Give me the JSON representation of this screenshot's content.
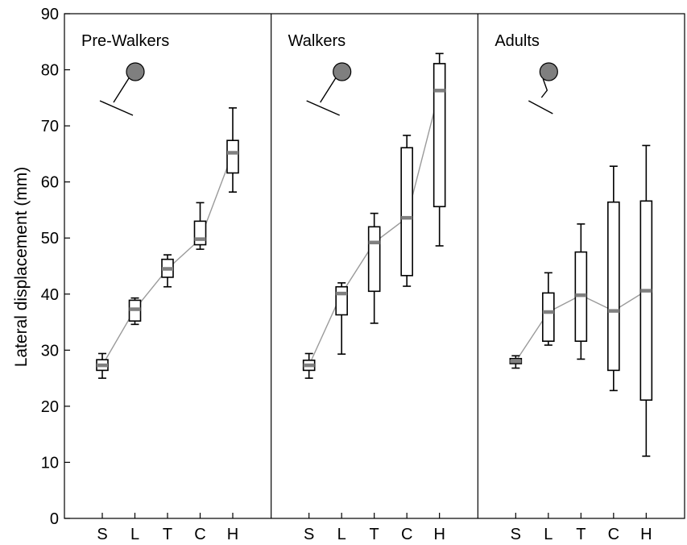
{
  "chart_data": {
    "type": "box",
    "ylabel": "Lateral displacement (mm)",
    "ylim": [
      0,
      90
    ],
    "yticks": [
      0,
      10,
      20,
      30,
      40,
      50,
      60,
      70,
      80,
      90
    ],
    "categories": [
      "S",
      "L",
      "T",
      "C",
      "H"
    ],
    "grid": false,
    "colors": {
      "median": "#808080",
      "connector": "#9a9a9a",
      "box": "#000000",
      "icon_fill": "#7f7f7f"
    },
    "panels": [
      {
        "title": "Pre-Walkers",
        "icon": "infant-pose-icon",
        "boxes": [
          {
            "category": "S",
            "min": 25.0,
            "q1": 26.4,
            "median": 27.3,
            "q3": 28.3,
            "max": 29.4
          },
          {
            "category": "L",
            "min": 34.6,
            "q1": 35.2,
            "median": 37.3,
            "q3": 38.9,
            "max": 39.3
          },
          {
            "category": "T",
            "min": 41.3,
            "q1": 43.0,
            "median": 44.5,
            "q3": 46.2,
            "max": 47.0
          },
          {
            "category": "C",
            "min": 48.0,
            "q1": 48.8,
            "median": 49.8,
            "q3": 53.0,
            "max": 56.3
          },
          {
            "category": "H",
            "min": 58.2,
            "q1": 61.6,
            "median": 65.2,
            "q3": 67.4,
            "max": 73.2
          }
        ]
      },
      {
        "title": "Walkers",
        "icon": "infant-pose-icon",
        "boxes": [
          {
            "category": "S",
            "min": 25.0,
            "q1": 26.4,
            "median": 27.3,
            "q3": 28.2,
            "max": 29.4
          },
          {
            "category": "L",
            "min": 29.3,
            "q1": 36.3,
            "median": 40.1,
            "q3": 41.3,
            "max": 42.0
          },
          {
            "category": "T",
            "min": 34.8,
            "q1": 40.5,
            "median": 49.2,
            "q3": 52.0,
            "max": 54.4
          },
          {
            "category": "C",
            "min": 41.4,
            "q1": 43.3,
            "median": 53.6,
            "q3": 66.1,
            "max": 68.3
          },
          {
            "category": "H",
            "min": 48.6,
            "q1": 55.6,
            "median": 76.3,
            "q3": 81.1,
            "max": 82.9
          }
        ]
      },
      {
        "title": "Adults",
        "icon": "adult-pose-icon",
        "boxes": [
          {
            "category": "S",
            "min": 26.8,
            "q1": 27.6,
            "median": 28.0,
            "q3": 28.5,
            "max": 29.0
          },
          {
            "category": "L",
            "min": 30.9,
            "q1": 31.6,
            "median": 36.8,
            "q3": 40.2,
            "max": 43.8
          },
          {
            "category": "T",
            "min": 28.4,
            "q1": 31.6,
            "median": 39.8,
            "q3": 47.5,
            "max": 52.5
          },
          {
            "category": "C",
            "min": 22.8,
            "q1": 26.4,
            "median": 37.0,
            "q3": 56.4,
            "max": 62.8
          },
          {
            "category": "H",
            "min": 11.1,
            "q1": 21.1,
            "median": 40.6,
            "q3": 56.6,
            "max": 66.5
          }
        ]
      }
    ]
  }
}
